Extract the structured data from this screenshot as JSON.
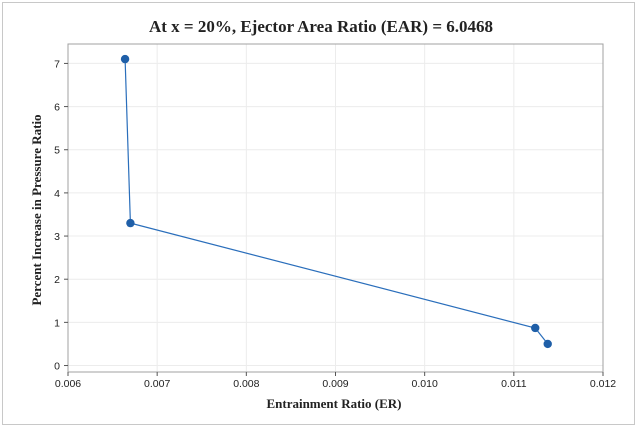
{
  "chart_data": {
    "type": "line",
    "title": "At x = 20%, Ejector Area Ratio (EAR) = 6.0468",
    "xlabel": "Entrainment Ratio (ER)",
    "ylabel": "Percent Increase in Pressure Ratio",
    "xlim": [
      0.006,
      0.012
    ],
    "ylim": [
      -0.15,
      7.45
    ],
    "xticks": [
      0.006,
      0.007,
      0.008,
      0.009,
      0.01,
      0.011,
      0.012
    ],
    "xtick_labels": [
      "0.006",
      "0.007",
      "0.008",
      "0.009",
      "0.010",
      "0.011",
      "0.012"
    ],
    "yticks": [
      0,
      1,
      2,
      3,
      4,
      5,
      6,
      7
    ],
    "ytick_labels": [
      "0",
      "1",
      "2",
      "3",
      "4",
      "5",
      "6",
      "7"
    ],
    "grid": true,
    "series": [
      {
        "x": [
          0.00664,
          0.0067,
          0.01124,
          0.01138
        ],
        "y": [
          7.1,
          3.3,
          0.87,
          0.5
        ]
      }
    ],
    "line_color": "#2a6ebb",
    "marker_color": "#1f5fa8",
    "grid_color": "#ececec"
  }
}
